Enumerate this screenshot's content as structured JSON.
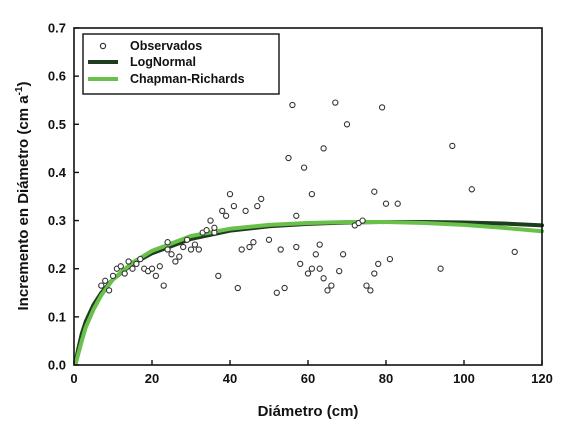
{
  "chart_data": {
    "type": "scatter",
    "title": "",
    "xlabel": "Diámetro (cm)",
    "ylabel_main": "Incremento en Diámetro (cm a",
    "ylabel_sup": "-1",
    "ylabel_close": ")",
    "xlim": [
      0,
      120
    ],
    "ylim": [
      0,
      0.7
    ],
    "x_ticks": [
      "0",
      "20",
      "40",
      "60",
      "80",
      "100",
      "120"
    ],
    "y_ticks": [
      "0.0",
      "0.1",
      "0.2",
      "0.3",
      "0.4",
      "0.5",
      "0.6",
      "0.7"
    ],
    "grid": false,
    "legend_position": "top-left",
    "legend": [
      {
        "name": "Observados",
        "kind": "marker",
        "color": "#333333"
      },
      {
        "name": "LogNormal",
        "kind": "line",
        "color": "#1e3d1e"
      },
      {
        "name": "Chapman-Richards",
        "kind": "line",
        "color": "#69c04a"
      }
    ],
    "series": [
      {
        "name": "Observados",
        "type": "scatter",
        "color": "#333333",
        "points": [
          [
            7,
            0.165
          ],
          [
            8,
            0.175
          ],
          [
            9,
            0.155
          ],
          [
            10,
            0.185
          ],
          [
            11,
            0.2
          ],
          [
            12,
            0.205
          ],
          [
            13,
            0.19
          ],
          [
            14,
            0.215
          ],
          [
            15,
            0.2
          ],
          [
            16,
            0.21
          ],
          [
            17,
            0.22
          ],
          [
            18,
            0.2
          ],
          [
            19,
            0.195
          ],
          [
            20,
            0.2
          ],
          [
            21,
            0.185
          ],
          [
            22,
            0.205
          ],
          [
            23,
            0.165
          ],
          [
            24,
            0.255
          ],
          [
            24,
            0.24
          ],
          [
            25,
            0.23
          ],
          [
            26,
            0.215
          ],
          [
            27,
            0.225
          ],
          [
            28,
            0.245
          ],
          [
            29,
            0.26
          ],
          [
            30,
            0.24
          ],
          [
            31,
            0.25
          ],
          [
            32,
            0.24
          ],
          [
            33,
            0.275
          ],
          [
            34,
            0.28
          ],
          [
            35,
            0.3
          ],
          [
            36,
            0.275
          ],
          [
            37,
            0.185
          ],
          [
            38,
            0.32
          ],
          [
            39,
            0.31
          ],
          [
            40,
            0.355
          ],
          [
            41,
            0.33
          ],
          [
            42,
            0.16
          ],
          [
            43,
            0.24
          ],
          [
            44,
            0.32
          ],
          [
            46,
            0.255
          ],
          [
            47,
            0.33
          ],
          [
            48,
            0.345
          ],
          [
            50,
            0.26
          ],
          [
            52,
            0.15
          ],
          [
            53,
            0.24
          ],
          [
            54,
            0.16
          ],
          [
            55,
            0.43
          ],
          [
            56,
            0.54
          ],
          [
            57,
            0.31
          ],
          [
            58,
            0.21
          ],
          [
            59,
            0.41
          ],
          [
            60,
            0.19
          ],
          [
            61,
            0.2
          ],
          [
            62,
            0.23
          ],
          [
            63,
            0.25
          ],
          [
            63,
            0.2
          ],
          [
            64,
            0.45
          ],
          [
            64,
            0.18
          ],
          [
            65,
            0.155
          ],
          [
            66,
            0.165
          ],
          [
            67,
            0.545
          ],
          [
            68,
            0.195
          ],
          [
            69,
            0.23
          ],
          [
            70,
            0.5
          ],
          [
            72,
            0.29
          ],
          [
            73,
            0.295
          ],
          [
            74,
            0.3
          ],
          [
            75,
            0.165
          ],
          [
            76,
            0.155
          ],
          [
            77,
            0.36
          ],
          [
            77,
            0.19
          ],
          [
            78,
            0.21
          ],
          [
            79,
            0.535
          ],
          [
            80,
            0.335
          ],
          [
            81,
            0.22
          ],
          [
            83,
            0.335
          ],
          [
            94,
            0.2
          ],
          [
            97,
            0.455
          ],
          [
            102,
            0.365
          ],
          [
            113,
            0.235
          ],
          [
            61,
            0.355
          ],
          [
            57,
            0.245
          ],
          [
            36,
            0.285
          ],
          [
            45,
            0.245
          ]
        ]
      },
      {
        "name": "LogNormal",
        "type": "line",
        "color": "#1e3d1e",
        "points": [
          [
            0.5,
            0.01
          ],
          [
            1,
            0.03
          ],
          [
            2,
            0.065
          ],
          [
            3,
            0.09
          ],
          [
            5,
            0.125
          ],
          [
            7,
            0.15
          ],
          [
            10,
            0.178
          ],
          [
            15,
            0.21
          ],
          [
            20,
            0.232
          ],
          [
            30,
            0.262
          ],
          [
            40,
            0.279
          ],
          [
            50,
            0.288
          ],
          [
            60,
            0.293
          ],
          [
            70,
            0.296
          ],
          [
            80,
            0.297
          ],
          [
            90,
            0.297
          ],
          [
            100,
            0.296
          ],
          [
            110,
            0.294
          ],
          [
            120,
            0.29
          ]
        ]
      },
      {
        "name": "Chapman-Richards",
        "type": "line",
        "color": "#69c04a",
        "points": [
          [
            0.5,
            0.005
          ],
          [
            1,
            0.02
          ],
          [
            2,
            0.05
          ],
          [
            3,
            0.078
          ],
          [
            5,
            0.115
          ],
          [
            7,
            0.145
          ],
          [
            10,
            0.178
          ],
          [
            15,
            0.213
          ],
          [
            20,
            0.237
          ],
          [
            30,
            0.268
          ],
          [
            40,
            0.283
          ],
          [
            50,
            0.291
          ],
          [
            60,
            0.295
          ],
          [
            70,
            0.297
          ],
          [
            80,
            0.297
          ],
          [
            90,
            0.295
          ],
          [
            100,
            0.291
          ],
          [
            110,
            0.285
          ],
          [
            120,
            0.278
          ]
        ]
      }
    ]
  }
}
